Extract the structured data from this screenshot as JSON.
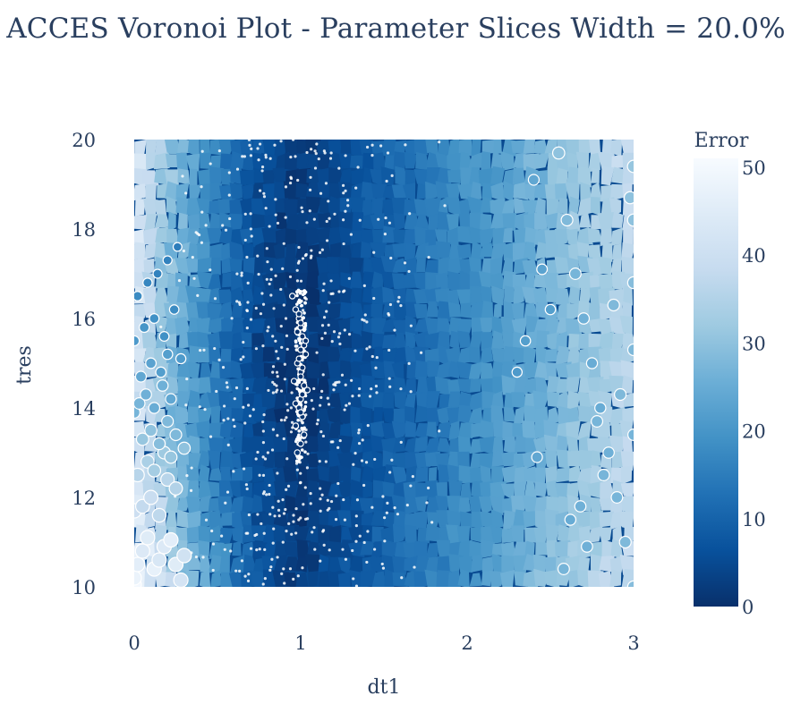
{
  "chart_data": {
    "type": "scatter",
    "title": "ACCES Voronoi Plot - Parameter Slices Width = 20.0%",
    "xlabel": "dt1",
    "ylabel": "tres",
    "xlim": [
      0,
      3
    ],
    "ylim": [
      10,
      20
    ],
    "x_ticks": [
      "0",
      "1",
      "2",
      "3"
    ],
    "y_ticks": [
      "10",
      "12",
      "14",
      "16",
      "18",
      "20"
    ],
    "colorbar": {
      "title": "Error",
      "range": [
        0,
        51
      ],
      "ticks": [
        "0",
        "10",
        "20",
        "30",
        "40",
        "50"
      ],
      "colorscale": [
        "#08306b",
        "#08519c",
        "#2171b5",
        "#4292c6",
        "#6baed6",
        "#9ecae1",
        "#c6dbef",
        "#deebf7",
        "#f7fbff"
      ]
    },
    "background": "voronoi cells colored by error",
    "marker_outline": "#ffffff",
    "series": [
      {
        "x": [
          0.0,
          0.0,
          0.02,
          0.05,
          0.08,
          0.12,
          0.15,
          0.18,
          0.22,
          0.25,
          0.28,
          0.3,
          0.0,
          0.05,
          0.1,
          0.15,
          0.2,
          0.25,
          0.02,
          0.08,
          0.12,
          0.18,
          0.22,
          0.3,
          0.05,
          0.1,
          0.15,
          0.2,
          0.25,
          0.0,
          0.03,
          0.07,
          0.12,
          0.17,
          0.22,
          0.04,
          0.1,
          0.16,
          0.2,
          0.28,
          0.0,
          0.06,
          0.12,
          0.18,
          0.24,
          0.02,
          0.08,
          0.14,
          0.2,
          0.26
        ],
        "y": [
          10.05,
          10.2,
          10.5,
          10.8,
          11.1,
          10.4,
          10.6,
          10.9,
          11.05,
          10.5,
          10.15,
          10.7,
          11.7,
          11.8,
          12.0,
          11.6,
          12.4,
          12.2,
          12.5,
          12.8,
          12.6,
          13.0,
          12.9,
          13.1,
          13.3,
          13.5,
          13.2,
          13.7,
          13.4,
          13.9,
          14.1,
          14.3,
          14.0,
          14.5,
          14.2,
          14.7,
          15.0,
          14.8,
          15.2,
          15.1,
          15.5,
          15.8,
          16.0,
          15.6,
          16.2,
          16.5,
          16.8,
          17.0,
          17.3,
          17.6
        ],
        "error": [
          50,
          48,
          46,
          44,
          45,
          47,
          43,
          44,
          46,
          45,
          42,
          41,
          40,
          38,
          39,
          37,
          36,
          35,
          36,
          34,
          33,
          32,
          31,
          30,
          31,
          30,
          29,
          28,
          28,
          27,
          27,
          26,
          25,
          26,
          24,
          24,
          23,
          22,
          22,
          21,
          21,
          20,
          19,
          19,
          18,
          18,
          17,
          16,
          16,
          15
        ]
      },
      {
        "x": [
          0.95,
          0.97,
          0.99,
          1.0,
          1.01,
          1.02,
          1.03,
          0.98,
          1.0,
          0.96,
          1.04,
          1.0,
          0.99,
          1.01,
          0.97,
          1.02,
          1.0,
          0.98,
          1.03,
          1.0,
          0.99,
          1.01,
          1.0,
          1.02,
          0.98,
          1.0,
          1.01,
          0.97,
          1.0,
          0.99
        ],
        "y": [
          16.5,
          16.2,
          16.0,
          15.8,
          15.6,
          15.4,
          15.2,
          15.0,
          14.8,
          14.6,
          14.4,
          14.2,
          14.0,
          13.8,
          13.6,
          13.4,
          13.2,
          13.0,
          15.5,
          15.3,
          15.1,
          14.9,
          14.7,
          14.5,
          15.7,
          15.9,
          14.3,
          14.1,
          13.9,
          16.1
        ],
        "error": [
          1,
          1,
          0.5,
          0.3,
          0.4,
          0.2,
          0.3,
          0.5,
          0.4,
          0.6,
          0.7,
          0.5,
          0.8,
          0.9,
          1.0,
          1.1,
          1.2,
          1.5,
          0.2,
          0.3,
          0.2,
          0.3,
          0.4,
          0.5,
          0.4,
          0.6,
          0.6,
          0.7,
          0.9,
          0.8
        ]
      },
      {
        "x": [
          2.55,
          2.6,
          2.65,
          2.7,
          2.75,
          2.8,
          2.85,
          2.9,
          2.95,
          3.0,
          3.0,
          3.0,
          3.0,
          3.0,
          3.0,
          2.4,
          2.45,
          2.5,
          2.35,
          2.3,
          2.42,
          2.62,
          2.72,
          2.82,
          2.92,
          2.58,
          2.68,
          2.78,
          2.88,
          2.98
        ],
        "y": [
          19.7,
          18.2,
          17.0,
          16.0,
          15.0,
          14.0,
          13.0,
          12.0,
          11.0,
          10.0,
          19.4,
          18.2,
          16.8,
          15.3,
          13.4,
          19.1,
          17.1,
          16.2,
          15.5,
          14.8,
          12.9,
          11.5,
          10.9,
          12.5,
          14.3,
          10.4,
          11.8,
          13.7,
          16.3,
          18.7
        ],
        "error": [
          30,
          28,
          27,
          26,
          25,
          25,
          26,
          27,
          28,
          29,
          31,
          30,
          29,
          28,
          27,
          24,
          23,
          22,
          22,
          21,
          24,
          25,
          26,
          27,
          28,
          27,
          26,
          27,
          28,
          30
        ]
      }
    ]
  }
}
